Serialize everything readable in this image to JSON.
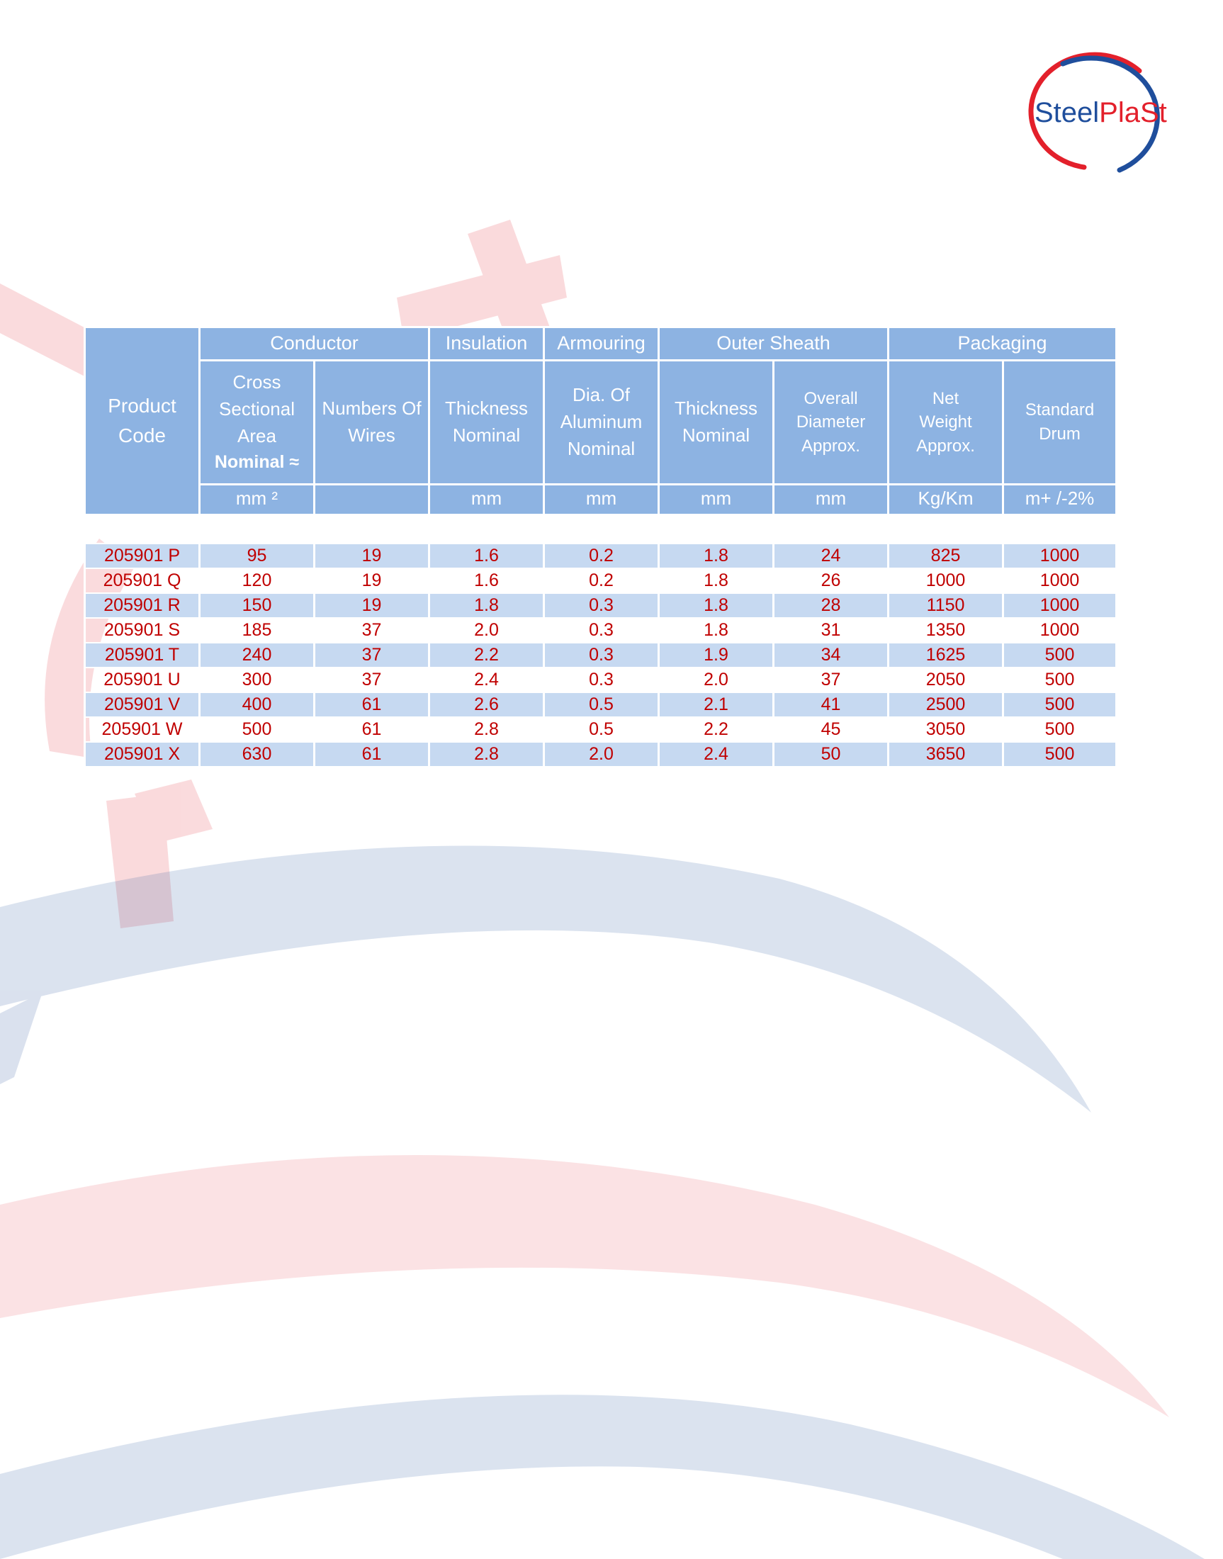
{
  "brand": {
    "logo_text_left": "Steel",
    "logo_text_right": "PlaSt",
    "colors": {
      "red": "#e3202b",
      "blue": "#1f4e9c",
      "header_blue": "#8db3e2",
      "row_blue": "#c6d9f1",
      "value_red": "#c00000"
    }
  },
  "table": {
    "product_code_header": "Product Code",
    "groups": {
      "conductor": "Conductor",
      "insulation": "Insulation",
      "armouring": "Armouring",
      "outer_sheath": "Outer Sheath",
      "packaging": "Packaging"
    },
    "columns": {
      "cross_sectional_area": "Cross Sectional Area",
      "nominal_bold": "Nominal ≈",
      "numbers_of_wires": "Numbers Of Wires",
      "insulation_thickness": "Thickness Nominal",
      "dia_of_aluminum": "Dia. Of Aluminum Nominal",
      "sheath_thickness": "Thickness Nominal",
      "overall_diameter": "Overall Diameter Approx.",
      "net_weight": "Net Weight Approx.",
      "standard_drum": "Standard Drum"
    },
    "units": {
      "area": "mm ²",
      "insulation": "mm",
      "armouring": "mm",
      "sheath": "mm",
      "diameter": "mm",
      "weight": "Kg/Km",
      "drum": "m+ /-2%"
    },
    "rows": [
      {
        "code": "205901 P",
        "area": "95",
        "wires": "19",
        "ins": "1.6",
        "arm": "0.2",
        "sheath": "1.8",
        "dia": "24",
        "weight": "825",
        "drum": "1000"
      },
      {
        "code": "205901 Q",
        "area": "120",
        "wires": "19",
        "ins": "1.6",
        "arm": "0.2",
        "sheath": "1.8",
        "dia": "26",
        "weight": "1000",
        "drum": "1000"
      },
      {
        "code": "205901 R",
        "area": "150",
        "wires": "19",
        "ins": "1.8",
        "arm": "0.3",
        "sheath": "1.8",
        "dia": "28",
        "weight": "1150",
        "drum": "1000"
      },
      {
        "code": "205901 S",
        "area": "185",
        "wires": "37",
        "ins": "2.0",
        "arm": "0.3",
        "sheath": "1.8",
        "dia": "31",
        "weight": "1350",
        "drum": "1000"
      },
      {
        "code": "205901 T",
        "area": "240",
        "wires": "37",
        "ins": "2.2",
        "arm": "0.3",
        "sheath": "1.9",
        "dia": "34",
        "weight": "1625",
        "drum": "500"
      },
      {
        "code": "205901 U",
        "area": "300",
        "wires": "37",
        "ins": "2.4",
        "arm": "0.3",
        "sheath": "2.0",
        "dia": "37",
        "weight": "2050",
        "drum": "500"
      },
      {
        "code": "205901 V",
        "area": "400",
        "wires": "61",
        "ins": "2.6",
        "arm": "0.5",
        "sheath": "2.1",
        "dia": "41",
        "weight": "2500",
        "drum": "500"
      },
      {
        "code": "205901 W",
        "area": "500",
        "wires": "61",
        "ins": "2.8",
        "arm": "0.5",
        "sheath": "2.2",
        "dia": "45",
        "weight": "3050",
        "drum": "500"
      },
      {
        "code": "205901 X",
        "area": "630",
        "wires": "61",
        "ins": "2.8",
        "arm": "2.0",
        "sheath": "2.4",
        "dia": "50",
        "weight": "3650",
        "drum": "500"
      }
    ]
  }
}
